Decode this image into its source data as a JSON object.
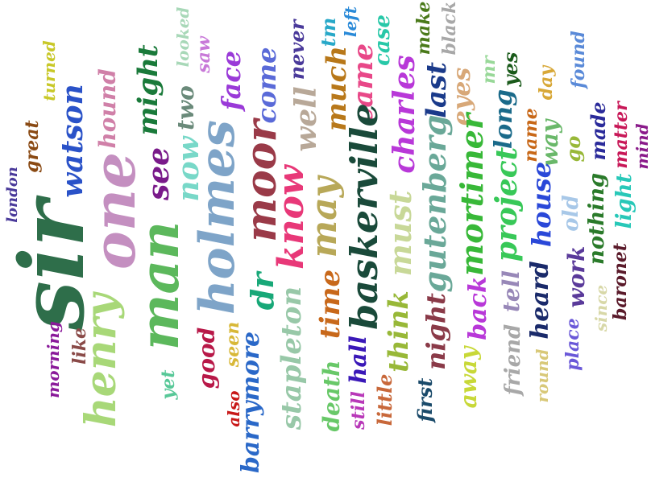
{
  "words": [
    {
      "text": "sir",
      "color": "#2e6e4a"
    },
    {
      "text": "one",
      "color": "#c48fc0"
    },
    {
      "text": "man",
      "color": "#5cb85c"
    },
    {
      "text": "holmes",
      "color": "#7ea4c8"
    },
    {
      "text": "henry",
      "color": "#a8d878"
    },
    {
      "text": "watson",
      "color": "#2a52c8"
    },
    {
      "text": "great",
      "color": "#8a4a14"
    },
    {
      "text": "london",
      "color": "#4a3a9a"
    },
    {
      "text": "turned",
      "color": "#c8c828"
    },
    {
      "text": "hound",
      "color": "#d080a8"
    },
    {
      "text": "might",
      "color": "#1a7a3a"
    },
    {
      "text": "see",
      "color": "#7a1a8a"
    },
    {
      "text": "two",
      "color": "#6a8a7a"
    },
    {
      "text": "looked",
      "color": "#a8d8b8"
    },
    {
      "text": "saw",
      "color": "#c878d8"
    },
    {
      "text": "now",
      "color": "#78d8c8"
    },
    {
      "text": "face",
      "color": "#9a3ad8"
    },
    {
      "text": "come",
      "color": "#5a6ad8"
    },
    {
      "text": "moor",
      "color": "#9a3a48"
    },
    {
      "text": "never",
      "color": "#4a3a9a"
    },
    {
      "text": "well",
      "color": "#b8a898"
    },
    {
      "text": "tm",
      "color": "#28a8c8"
    },
    {
      "text": "left",
      "color": "#2a8ad8"
    },
    {
      "text": "much",
      "color": "#b8781a"
    },
    {
      "text": "came",
      "color": "#e84888"
    },
    {
      "text": "case",
      "color": "#28c8a8"
    },
    {
      "text": "make",
      "color": "#4a7a1a"
    },
    {
      "text": "black",
      "color": "#a8a8a8"
    },
    {
      "text": "charles",
      "color": "#b838d8"
    },
    {
      "text": "last",
      "color": "#1a3a8a"
    },
    {
      "text": "eyes",
      "color": "#d8a878"
    },
    {
      "text": "mr",
      "color": "#98d898"
    },
    {
      "text": "yes",
      "color": "#1a5a1a"
    },
    {
      "text": "long",
      "color": "#1a6a8a"
    },
    {
      "text": "found",
      "color": "#5a8ad8"
    },
    {
      "text": "day",
      "color": "#d8a838"
    },
    {
      "text": "way",
      "color": "#6ab86a"
    },
    {
      "text": "name",
      "color": "#c86818"
    },
    {
      "text": "go",
      "color": "#98b838"
    },
    {
      "text": "made",
      "color": "#2a2a9a"
    },
    {
      "text": "matter",
      "color": "#c81858"
    },
    {
      "text": "mind",
      "color": "#8a1a8a"
    },
    {
      "text": "know",
      "color": "#e83878"
    },
    {
      "text": "baskerville",
      "color": "#1a4a3a"
    },
    {
      "text": "may",
      "color": "#b8a858"
    },
    {
      "text": "must",
      "color": "#c8d898"
    },
    {
      "text": "gutenberg",
      "color": "#6aa898"
    },
    {
      "text": "mortimer",
      "color": "#38b838"
    },
    {
      "text": "project",
      "color": "#38c858"
    },
    {
      "text": "house",
      "color": "#2a48d8"
    },
    {
      "text": "old",
      "color": "#a8c8e8"
    },
    {
      "text": "nothing",
      "color": "#2a7a2a"
    },
    {
      "text": "light",
      "color": "#28c8b8"
    },
    {
      "text": "dr",
      "color": "#18a878"
    },
    {
      "text": "time",
      "color": "#c8681a"
    },
    {
      "text": "think",
      "color": "#98b838"
    },
    {
      "text": "night",
      "color": "#8a3a48"
    },
    {
      "text": "back",
      "color": "#b838d8"
    },
    {
      "text": "tell",
      "color": "#9888b8"
    },
    {
      "text": "heard",
      "color": "#1a2a6a"
    },
    {
      "text": "work",
      "color": "#5a3a9a"
    },
    {
      "text": "baronet",
      "color": "#5a1a2a"
    },
    {
      "text": "morning",
      "color": "#8a1a9a"
    },
    {
      "text": "like",
      "color": "#8a4a48"
    },
    {
      "text": "yet",
      "color": "#58c898"
    },
    {
      "text": "good",
      "color": "#b81848"
    },
    {
      "text": "seen",
      "color": "#d8b838"
    },
    {
      "text": "also",
      "color": "#c81818"
    },
    {
      "text": "barrymore",
      "color": "#2a68c8"
    },
    {
      "text": "stapleton",
      "color": "#98c8a8"
    },
    {
      "text": "death",
      "color": "#68c868"
    },
    {
      "text": "hall",
      "color": "#3a18b8"
    },
    {
      "text": "still",
      "color": "#b838b8"
    },
    {
      "text": "little",
      "color": "#c8683a"
    },
    {
      "text": "first",
      "color": "#1a4a6a"
    },
    {
      "text": "away",
      "color": "#c8d838"
    },
    {
      "text": "friend",
      "color": "#a8a8a8"
    },
    {
      "text": "round",
      "color": "#d8c878"
    },
    {
      "text": "place",
      "color": "#6a58d8"
    },
    {
      "text": "since",
      "color": "#d8d8a8"
    }
  ]
}
